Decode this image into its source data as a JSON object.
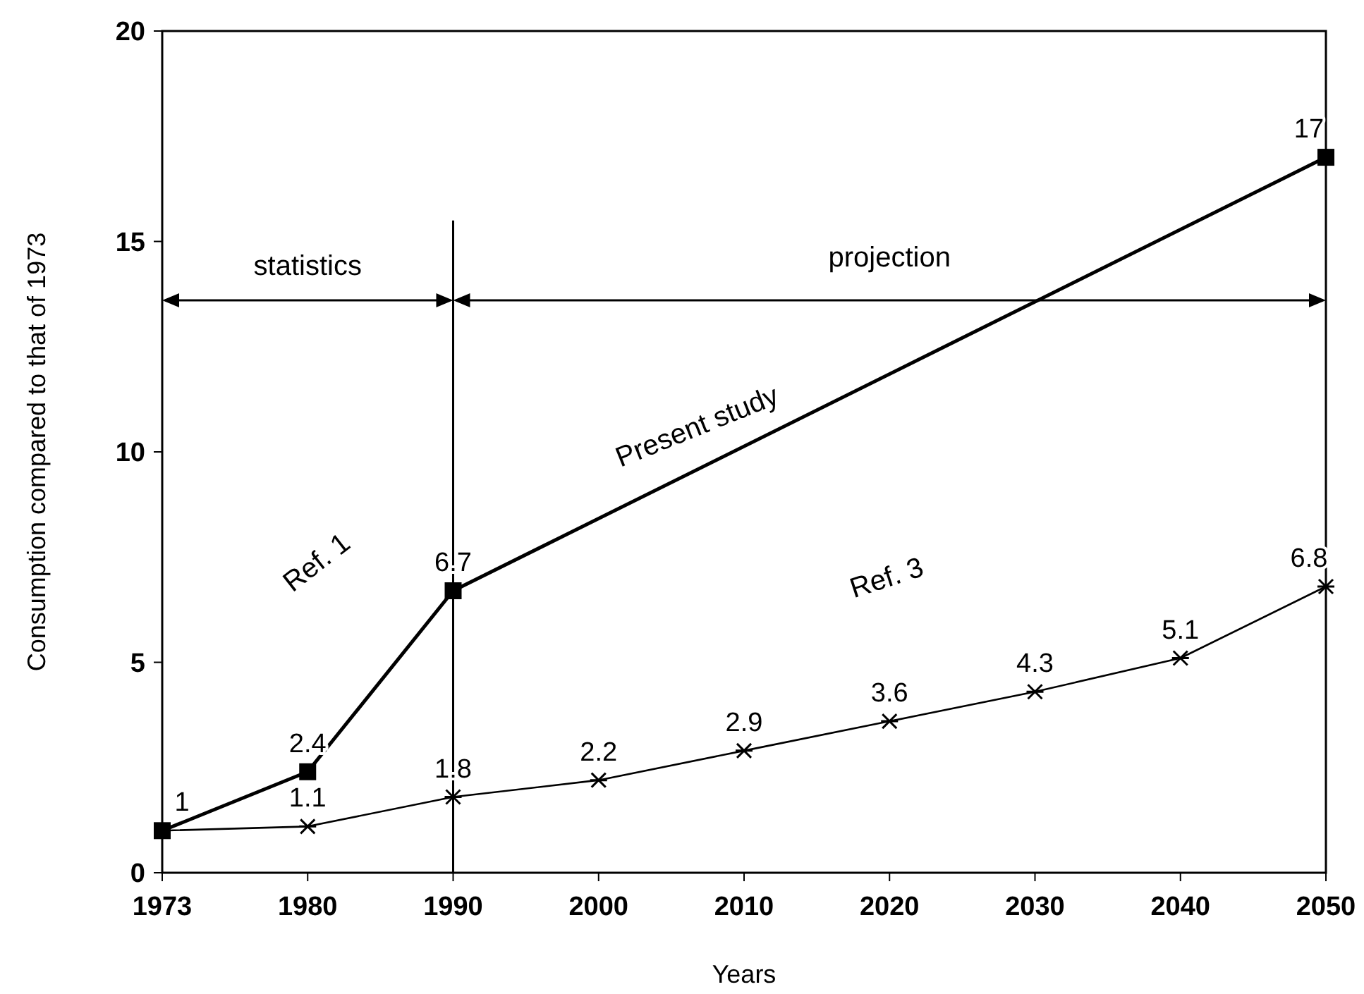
{
  "chart_data": {
    "type": "line",
    "xlabel": "Years",
    "ylabel": "Consumption compared to that of 1973",
    "categories": [
      "1973",
      "1980",
      "1990",
      "2000",
      "2010",
      "2020",
      "2030",
      "2040",
      "2050"
    ],
    "series": [
      {
        "color": "#000000",
        "values": [
          1,
          2.4,
          6.7,
          null,
          null,
          null,
          null,
          null,
          17
        ],
        "value_labels": [
          "1",
          "2.4",
          "6.7",
          null,
          null,
          null,
          null,
          null,
          "17"
        ],
        "marker": "square"
      },
      {
        "color": "#000000",
        "values": [
          1,
          1.1,
          1.8,
          2.2,
          2.9,
          3.6,
          4.3,
          5.1,
          6.8
        ],
        "value_labels": [
          null,
          "1.1",
          "1.8",
          "2.2",
          "2.9",
          "3.6",
          "4.3",
          "5.1",
          "6.8"
        ],
        "marker": "cross"
      }
    ],
    "ylim": [
      0,
      20
    ],
    "yticks": [
      0,
      5,
      10,
      15,
      20
    ],
    "grid": false,
    "ref_lines": [
      {
        "axis": "x",
        "value": "1990"
      }
    ],
    "annotations": [
      "Ref. 1",
      "Present study",
      "Ref. 3",
      "statistics",
      "projection"
    ]
  }
}
